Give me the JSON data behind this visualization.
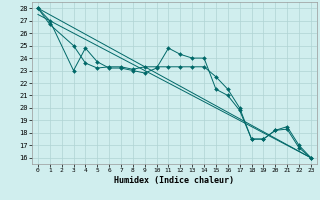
{
  "xlabel": "Humidex (Indice chaleur)",
  "xlim": [
    -0.5,
    23.5
  ],
  "ylim": [
    15.5,
    28.5
  ],
  "yticks": [
    16,
    17,
    18,
    19,
    20,
    21,
    22,
    23,
    24,
    25,
    26,
    27,
    28
  ],
  "xticks": [
    0,
    1,
    2,
    3,
    4,
    5,
    6,
    7,
    8,
    9,
    10,
    11,
    12,
    13,
    14,
    15,
    16,
    17,
    18,
    19,
    20,
    21,
    22,
    23
  ],
  "bg_color": "#d0eeee",
  "grid_color": "#b0d4d4",
  "line_color": "#006868",
  "line1_x": [
    0,
    1,
    3,
    4,
    5,
    6,
    7,
    8,
    9,
    10,
    11,
    12,
    13,
    14,
    15,
    16,
    17,
    18,
    19,
    20,
    21,
    22,
    23
  ],
  "line1_y": [
    28,
    27,
    23.0,
    24.8,
    23.7,
    23.2,
    23.2,
    23.0,
    22.8,
    23.2,
    24.8,
    24.3,
    24.0,
    24.0,
    21.5,
    21.0,
    19.8,
    17.5,
    17.5,
    18.2,
    18.3,
    16.8,
    16.0
  ],
  "line2_x": [
    0,
    1,
    3,
    4,
    5,
    6,
    7,
    8,
    9,
    10,
    11,
    12,
    13,
    14,
    15,
    16,
    17,
    18,
    19,
    20,
    21,
    22,
    23
  ],
  "line2_y": [
    28,
    26.7,
    25.0,
    23.6,
    23.2,
    23.3,
    23.3,
    23.1,
    23.3,
    23.3,
    23.3,
    23.3,
    23.3,
    23.3,
    22.5,
    21.5,
    20.0,
    17.5,
    17.5,
    18.2,
    18.5,
    17.0,
    16.0
  ],
  "line3_x": [
    0,
    23
  ],
  "line3_y": [
    28.0,
    16.0
  ],
  "line4_x": [
    0,
    23
  ],
  "line4_y": [
    27.5,
    16.0
  ]
}
